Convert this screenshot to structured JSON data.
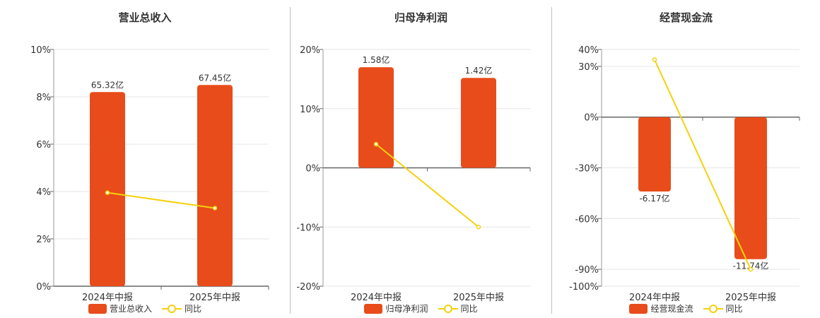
{
  "colors": {
    "bar": "#e84c1a",
    "line": "#f5d10d",
    "axis": "#666666",
    "grid": "#e6e6e6"
  },
  "chart_data": [
    {
      "type": "bar",
      "title": "营业总收入",
      "categories": [
        "2024年中报",
        "2025年中报"
      ],
      "bar_labels": [
        "65.32亿",
        "67.45亿"
      ],
      "bar_values": [
        8.2,
        8.5
      ],
      "line_values": [
        3.95,
        3.3
      ],
      "y_ticks": [
        "10%",
        "8%",
        "6%",
        "4%",
        "2%",
        "0%"
      ],
      "y_tick_values": [
        10,
        8,
        6,
        4,
        2,
        0
      ],
      "ylim": [
        0,
        10
      ],
      "legend": [
        "营业总收入",
        "同比"
      ]
    },
    {
      "type": "bar",
      "title": "归母净利润",
      "categories": [
        "2024年中报",
        "2025年中报"
      ],
      "bar_labels": [
        "1.58亿",
        "1.42亿"
      ],
      "bar_values": [
        17,
        15.2
      ],
      "line_values": [
        4,
        -10
      ],
      "y_ticks": [
        "20%",
        "10%",
        "0%",
        "-10%",
        "-20%"
      ],
      "y_tick_values": [
        20,
        10,
        0,
        -10,
        -20
      ],
      "ylim": [
        -20,
        20
      ],
      "legend": [
        "归母净利润",
        "同比"
      ]
    },
    {
      "type": "bar",
      "title": "经营现金流",
      "categories": [
        "2024年中报",
        "2025年中报"
      ],
      "bar_labels": [
        "-6.17亿",
        "-11.74亿"
      ],
      "bar_values": [
        -44,
        -84
      ],
      "line_values": [
        34,
        -90
      ],
      "y_ticks": [
        "40%",
        "30%",
        "0%",
        "-30%",
        "-60%",
        "-90%",
        "-100%"
      ],
      "y_tick_values": [
        40,
        30,
        0,
        -30,
        -60,
        -90,
        -100
      ],
      "ylim": [
        -100,
        40
      ],
      "legend": [
        "经营现金流",
        "同比"
      ]
    }
  ]
}
